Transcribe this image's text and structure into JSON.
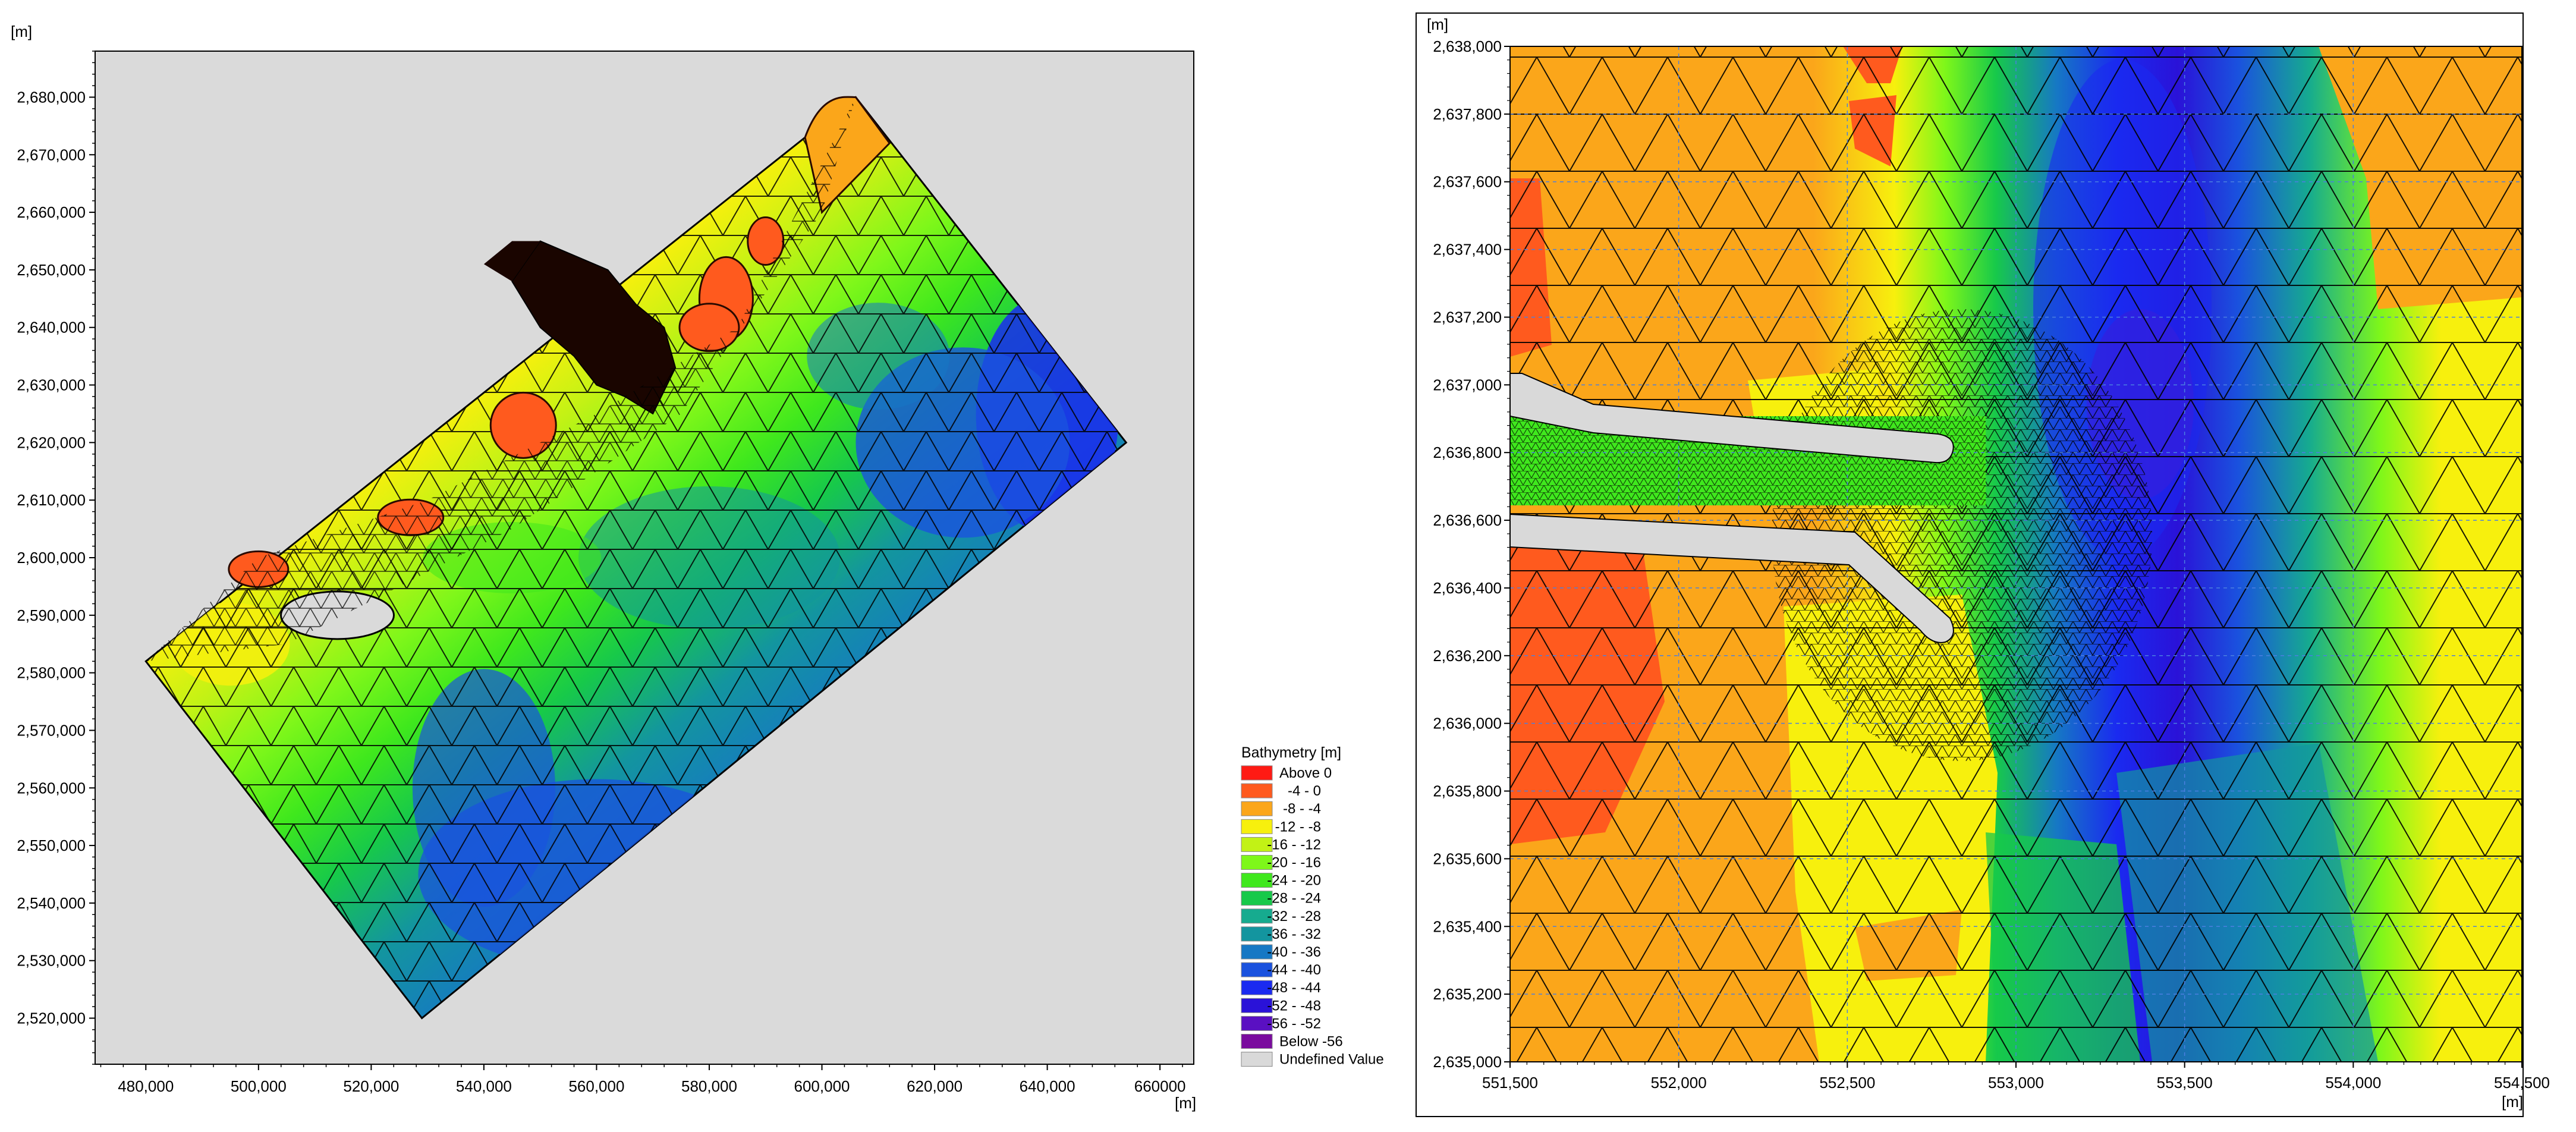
{
  "chart_data": [
    {
      "type": "heatmap",
      "title": "",
      "xlabel": "[m]",
      "ylabel": "[m]",
      "xlim": [
        471000,
        666000
      ],
      "ylim": [
        2512000,
        2688000
      ],
      "x_ticks": [
        "480,000",
        "500,000",
        "520,000",
        "540,000",
        "560,000",
        "580,000",
        "600,000",
        "620,000",
        "640,000",
        "660000"
      ],
      "y_ticks": [
        "2,680,000",
        "2,670,000",
        "2,660,000",
        "2,650,000",
        "2,640,000",
        "2,630,000",
        "2,620,000",
        "2,610,000",
        "2,600,000",
        "2,590,000",
        "2,580,000",
        "2,570,000",
        "2,560,000",
        "2,550,000",
        "2,540,000",
        "2,530,000",
        "2,520,000"
      ],
      "grid": false,
      "background_color": "#dadada",
      "mesh_corners": [
        [
          480000,
          2582000
        ],
        [
          606000,
          2680000
        ],
        [
          654000,
          2620000
        ],
        [
          529000,
          2520000
        ]
      ],
      "mesh_overlay": "triangular",
      "legend": {
        "title": "Bathymetry [m]",
        "placement": "right",
        "entries": [
          {
            "label": "Above  0",
            "color": "#ff1a14"
          },
          {
            "label": "-4 -  0",
            "color": "#ff5a1e"
          },
          {
            "label": "-8 - -4",
            "color": "#fba61a"
          },
          {
            "label": "-12 - -8",
            "color": "#f7f00d"
          },
          {
            "label": "-16 - -12",
            "color": "#c2f215"
          },
          {
            "label": "-20 - -16",
            "color": "#7ef71a"
          },
          {
            "label": "-24 - -20",
            "color": "#3fe81d"
          },
          {
            "label": "-28 - -24",
            "color": "#17c94a"
          },
          {
            "label": "-32 - -28",
            "color": "#16ab8f"
          },
          {
            "label": "-36 - -32",
            "color": "#13959f"
          },
          {
            "label": "-40 - -36",
            "color": "#1678c4"
          },
          {
            "label": "-44 - -40",
            "color": "#1a52de"
          },
          {
            "label": "-48 - -44",
            "color": "#1a2af0"
          },
          {
            "label": "-52 - -48",
            "color": "#2a12d8"
          },
          {
            "label": "-56 - -52",
            "color": "#5a10c2"
          },
          {
            "label": "Below -56",
            "color": "#7a0c9e"
          },
          {
            "label": "Undefined Value",
            "color": "#d9d9d9"
          }
        ]
      }
    },
    {
      "type": "heatmap",
      "title": "",
      "xlabel": "[m]",
      "ylabel": "[m]",
      "xlim": [
        551500,
        554500
      ],
      "ylim": [
        2635000,
        2638000
      ],
      "x_ticks": [
        "551,500",
        "552,000",
        "552,500",
        "553,000",
        "553,500",
        "554,000",
        "554,500"
      ],
      "y_ticks": [
        "2,638,000",
        "2,637,800",
        "2,637,600",
        "2,637,400",
        "2,637,200",
        "2,637,000",
        "2,636,800",
        "2,636,600",
        "2,636,400",
        "2,636,200",
        "2,636,000",
        "2,635,800",
        "2,635,600",
        "2,635,400",
        "2,635,200",
        "2,635,000"
      ],
      "grid": true,
      "grid_style": "dashed",
      "mesh_overlay": "triangular",
      "background_color": "#fba61a",
      "features": [
        "breakwater-north",
        "breakwater-south",
        "navigation-channel"
      ]
    }
  ]
}
